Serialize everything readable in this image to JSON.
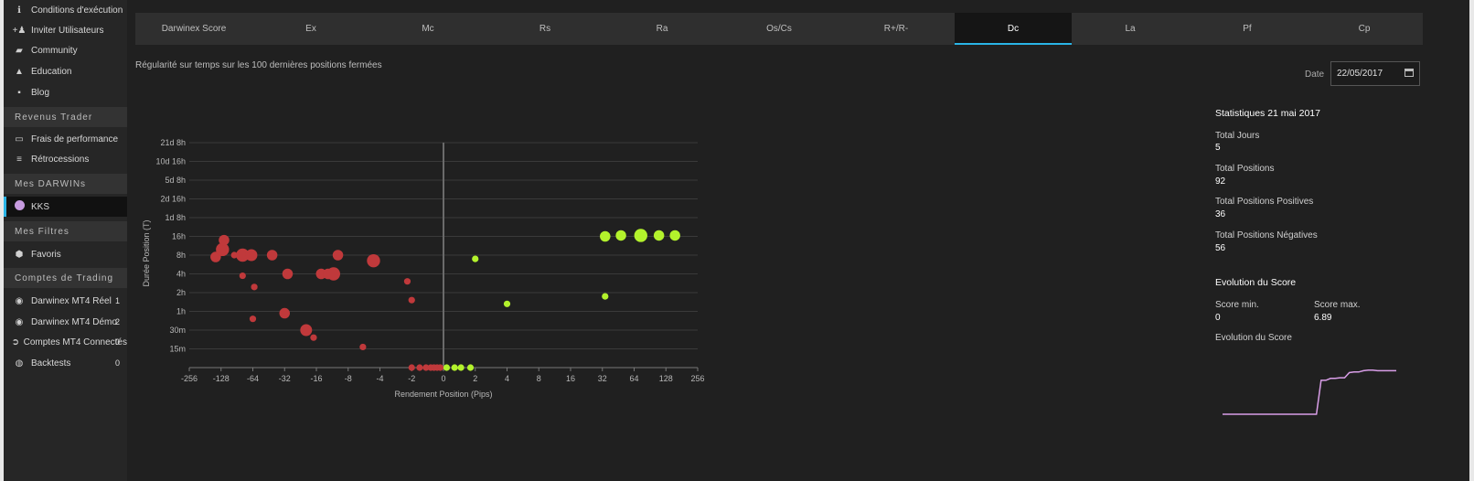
{
  "sidebar": {
    "items_top": [
      {
        "icon": "info-icon",
        "label": "Conditions d'exécution"
      },
      {
        "icon": "invite-users-icon",
        "label": "Inviter Utilisateurs"
      },
      {
        "icon": "community-icon",
        "label": "Community"
      },
      {
        "icon": "education-icon",
        "label": "Education"
      },
      {
        "icon": "blog-icon",
        "label": "Blog"
      }
    ],
    "section_revenus": "Revenus Trader",
    "items_revenus": [
      {
        "icon": "money-icon",
        "label": "Frais de performance"
      },
      {
        "icon": "coins-icon",
        "label": "Rétrocessions"
      }
    ],
    "section_darwins": "Mes DARWINs",
    "darwin_item": {
      "icon": "darwin-dot-icon",
      "label": "KKS",
      "color": "#c79be0"
    },
    "section_filtres": "Mes Filtres",
    "items_filtres": [
      {
        "icon": "shield-icon",
        "label": "Favoris"
      }
    ],
    "section_comptes": "Comptes de Trading",
    "items_comptes": [
      {
        "icon": "circle-icon",
        "label": "Darwinex MT4 Réel",
        "count": "1"
      },
      {
        "icon": "circle-icon",
        "label": "Darwinex MT4 Démo",
        "count": "2"
      },
      {
        "icon": "connect-icon",
        "label": "Comptes MT4 Connectés",
        "count": "0"
      },
      {
        "icon": "backtest-icon",
        "label": "Backtests",
        "count": "0"
      }
    ]
  },
  "tabs": [
    {
      "label": "Darwinex Score"
    },
    {
      "label": "Ex"
    },
    {
      "label": "Mc"
    },
    {
      "label": "Rs"
    },
    {
      "label": "Ra"
    },
    {
      "label": "Os/Cs"
    },
    {
      "label": "R+/R-"
    },
    {
      "label": "Dc",
      "active": true
    },
    {
      "label": "La"
    },
    {
      "label": "Pf"
    },
    {
      "label": "Cp"
    }
  ],
  "subtitle": "Régularité sur temps sur les 100 dernières positions fermées",
  "date": {
    "label": "Date",
    "value": "22/05/2017"
  },
  "stats": {
    "title": "Statistiques 21 mai 2017",
    "total_jours_label": "Total Jours",
    "total_jours": "5",
    "total_positions_label": "Total Positions",
    "total_positions": "92",
    "positives_label": "Total Positions Positives",
    "positives": "36",
    "negatives_label": "Total Positions Négatives",
    "negatives": "56",
    "evolution_title": "Evolution du Score",
    "score_min_label": "Score min.",
    "score_min": "0",
    "score_max_label": "Score max.",
    "score_max": "6.89",
    "evolution_subtitle": "Evolution du Score"
  },
  "colors": {
    "negative": "#c0393b",
    "positive": "#b3f22c",
    "sparkline": "#d99ee8",
    "axis": "#9a9a9a",
    "grid": "#3a3a3a"
  },
  "chart_data": {
    "type": "scatter",
    "xlabel": "Rendement Position (Pips)",
    "ylabel": "Durée Position (T)",
    "xscale": "symlog",
    "xticks": [
      "-256",
      "-128",
      "-64",
      "-32",
      "-16",
      "-8",
      "-4",
      "-2",
      "0",
      "2",
      "4",
      "8",
      "16",
      "32",
      "64",
      "128",
      "256"
    ],
    "yticks": [
      "15m",
      "30m",
      "1h",
      "2h",
      "4h",
      "8h",
      "16h",
      "1d 8h",
      "2d 16h",
      "5d 8h",
      "10d 16h",
      "21d 8h"
    ],
    "series": [
      {
        "sign": "negative",
        "points": [
          [
            -32,
            1.6,
            1
          ],
          [
            -72,
            4.9,
            1.6
          ],
          [
            -62,
            5.3,
            2
          ],
          [
            -60,
            5.8,
            1.6
          ],
          [
            -48,
            5.0,
            1
          ],
          [
            -40,
            5.0,
            2
          ],
          [
            -33,
            5.0,
            1.8
          ],
          [
            -21,
            5.0,
            1.6
          ],
          [
            -15,
            4.0,
            1.6
          ],
          [
            -40,
            3.9,
            1
          ],
          [
            -31,
            3.3,
            1
          ],
          [
            -16,
            1.9,
            1.6
          ],
          [
            -10,
            1.0,
            1.8
          ],
          [
            -8.5,
            0.6,
            1
          ],
          [
            -7.2,
            4.0,
            1.6
          ],
          [
            -6.2,
            4.0,
            1.6
          ],
          [
            -5.5,
            4.0,
            2
          ],
          [
            -5.0,
            5.0,
            1.6
          ],
          [
            -2.3,
            4.7,
            2
          ],
          [
            -1.1,
            3.6,
            1
          ],
          [
            -1.0,
            2.6,
            1
          ],
          [
            -2.9,
            0.1,
            1
          ],
          [
            -1.0,
            0,
            1
          ],
          [
            -0.75,
            0,
            1
          ],
          [
            -0.55,
            0,
            1
          ],
          [
            -0.4,
            0,
            1
          ],
          [
            -0.3,
            0,
            1
          ],
          [
            -0.2,
            0,
            1
          ],
          [
            -0.1,
            0,
            1
          ]
        ]
      },
      {
        "sign": "positive",
        "points": [
          [
            0.1,
            0,
            1
          ],
          [
            0.35,
            0,
            1
          ],
          [
            0.55,
            0,
            1
          ],
          [
            0.85,
            0,
            1
          ],
          [
            1.0,
            4.8,
            1
          ],
          [
            2.0,
            2.4,
            1
          ],
          [
            17,
            2.8,
            1
          ],
          [
            17,
            6.0,
            1.6
          ],
          [
            24,
            6.05,
            1.6
          ],
          [
            37,
            6.05,
            2
          ],
          [
            55,
            6.05,
            1.6
          ],
          [
            78,
            6.05,
            1.6
          ]
        ]
      }
    ],
    "sparkline_y": [
      0,
      0,
      0,
      0,
      0,
      0,
      0,
      0,
      0,
      0,
      0,
      0,
      0,
      0,
      0,
      0,
      0,
      0,
      0,
      0,
      0,
      5.3,
      5.3,
      5.6,
      5.6,
      5.7,
      5.7,
      6.5,
      6.6,
      6.6,
      6.8,
      6.89,
      6.89,
      6.8,
      6.8,
      6.8,
      6.8,
      6.8
    ]
  }
}
